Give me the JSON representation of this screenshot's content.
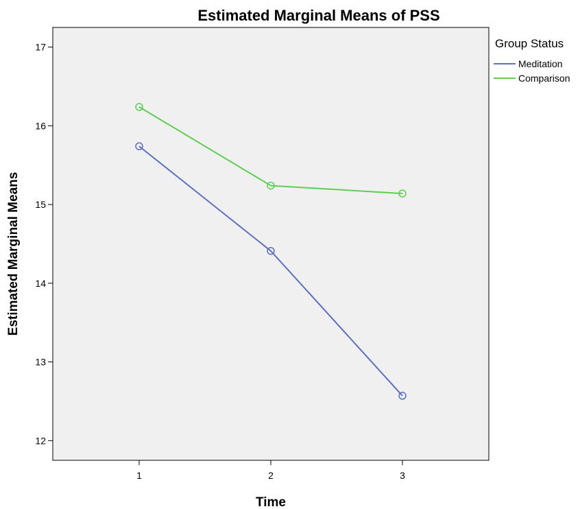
{
  "chart_data": {
    "type": "line",
    "title": "Estimated Marginal Means of PSS",
    "xlabel": "Time",
    "ylabel": "Estimated Marginal Means",
    "categories": [
      "1",
      "2",
      "3"
    ],
    "ylim": [
      11.75,
      17.25
    ],
    "yticks": [
      12,
      13,
      14,
      15,
      16,
      17
    ],
    "grid": false,
    "legend": {
      "title": "Group Status",
      "placement": "right"
    },
    "plot_background": "#f0f0f0",
    "series": [
      {
        "name": "Meditation",
        "color": "#5a6fc6",
        "values": [
          15.74,
          14.41,
          12.57
        ]
      },
      {
        "name": "Comparison",
        "color": "#5ccf52",
        "values": [
          16.24,
          15.24,
          15.14
        ]
      }
    ]
  }
}
